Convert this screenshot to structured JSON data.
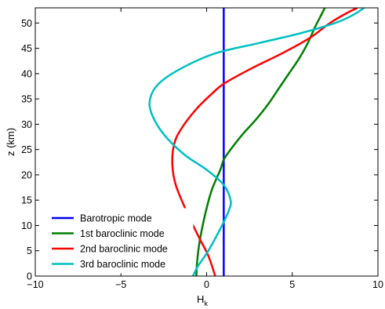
{
  "chart_data": {
    "type": "line",
    "title": "",
    "xlabel": "H",
    "xlabel_subscript": "k",
    "ylabel": "z (km)",
    "xlim": [
      -10,
      10
    ],
    "ylim": [
      0,
      53
    ],
    "xticks": [
      -10,
      -5,
      0,
      5,
      10
    ],
    "yticks": [
      0,
      5,
      10,
      15,
      20,
      25,
      30,
      35,
      40,
      45,
      50
    ],
    "xtick_labels": [
      "−10",
      "−5",
      "0",
      "5",
      "10"
    ],
    "ytick_labels": [
      "0",
      "5",
      "10",
      "15",
      "20",
      "25",
      "30",
      "35",
      "40",
      "45",
      "50"
    ],
    "grid": false,
    "legend_placement": "bottom-left",
    "series": [
      {
        "name": "Barotropic mode",
        "color": "#0000ff",
        "points": [
          [
            1.0,
            0
          ],
          [
            1.0,
            53
          ]
        ]
      },
      {
        "name": "1st baroclinic mode",
        "color": "#007f00",
        "points": [
          [
            -0.6,
            0
          ],
          [
            -0.55,
            3
          ],
          [
            -0.4,
            7
          ],
          [
            -0.1,
            12
          ],
          [
            0.3,
            17
          ],
          [
            0.8,
            21
          ],
          [
            1.0,
            23
          ],
          [
            1.4,
            25
          ],
          [
            2.1,
            28
          ],
          [
            2.9,
            31
          ],
          [
            3.6,
            34
          ],
          [
            4.2,
            37
          ],
          [
            4.8,
            40
          ],
          [
            5.4,
            43
          ],
          [
            5.9,
            46
          ],
          [
            6.3,
            49
          ],
          [
            6.6,
            51
          ],
          [
            6.9,
            53
          ]
        ]
      },
      {
        "name": "2nd baroclinic mode",
        "color": "#ff0000",
        "points": [
          [
            0.5,
            0
          ],
          [
            0.1,
            4
          ],
          [
            -0.5,
            8
          ],
          [
            -1.2,
            13
          ],
          [
            -1.8,
            18
          ],
          [
            -2.0,
            22
          ],
          [
            -1.9,
            26
          ],
          [
            -1.5,
            29
          ],
          [
            -0.6,
            33
          ],
          [
            0.3,
            36
          ],
          [
            1.0,
            38
          ],
          [
            2.6,
            41
          ],
          [
            4.4,
            44
          ],
          [
            6.0,
            47
          ],
          [
            7.2,
            50
          ],
          [
            8.2,
            52
          ],
          [
            8.8,
            53
          ]
        ]
      },
      {
        "name": "3rd baroclinic mode",
        "color": "#00bfbf",
        "points": [
          [
            -0.8,
            0
          ],
          [
            -0.5,
            2
          ],
          [
            0.1,
            5
          ],
          [
            0.9,
            10
          ],
          [
            1.3,
            13
          ],
          [
            1.4,
            15
          ],
          [
            1.0,
            18
          ],
          [
            0.0,
            21
          ],
          [
            -1.3,
            24
          ],
          [
            -2.5,
            28
          ],
          [
            -3.2,
            32
          ],
          [
            -3.3,
            35
          ],
          [
            -2.8,
            38
          ],
          [
            -1.5,
            41
          ],
          [
            0.5,
            44
          ],
          [
            3.0,
            46
          ],
          [
            5.5,
            48
          ],
          [
            7.5,
            50
          ],
          [
            8.5,
            51.5
          ],
          [
            9.2,
            53
          ]
        ]
      }
    ]
  }
}
